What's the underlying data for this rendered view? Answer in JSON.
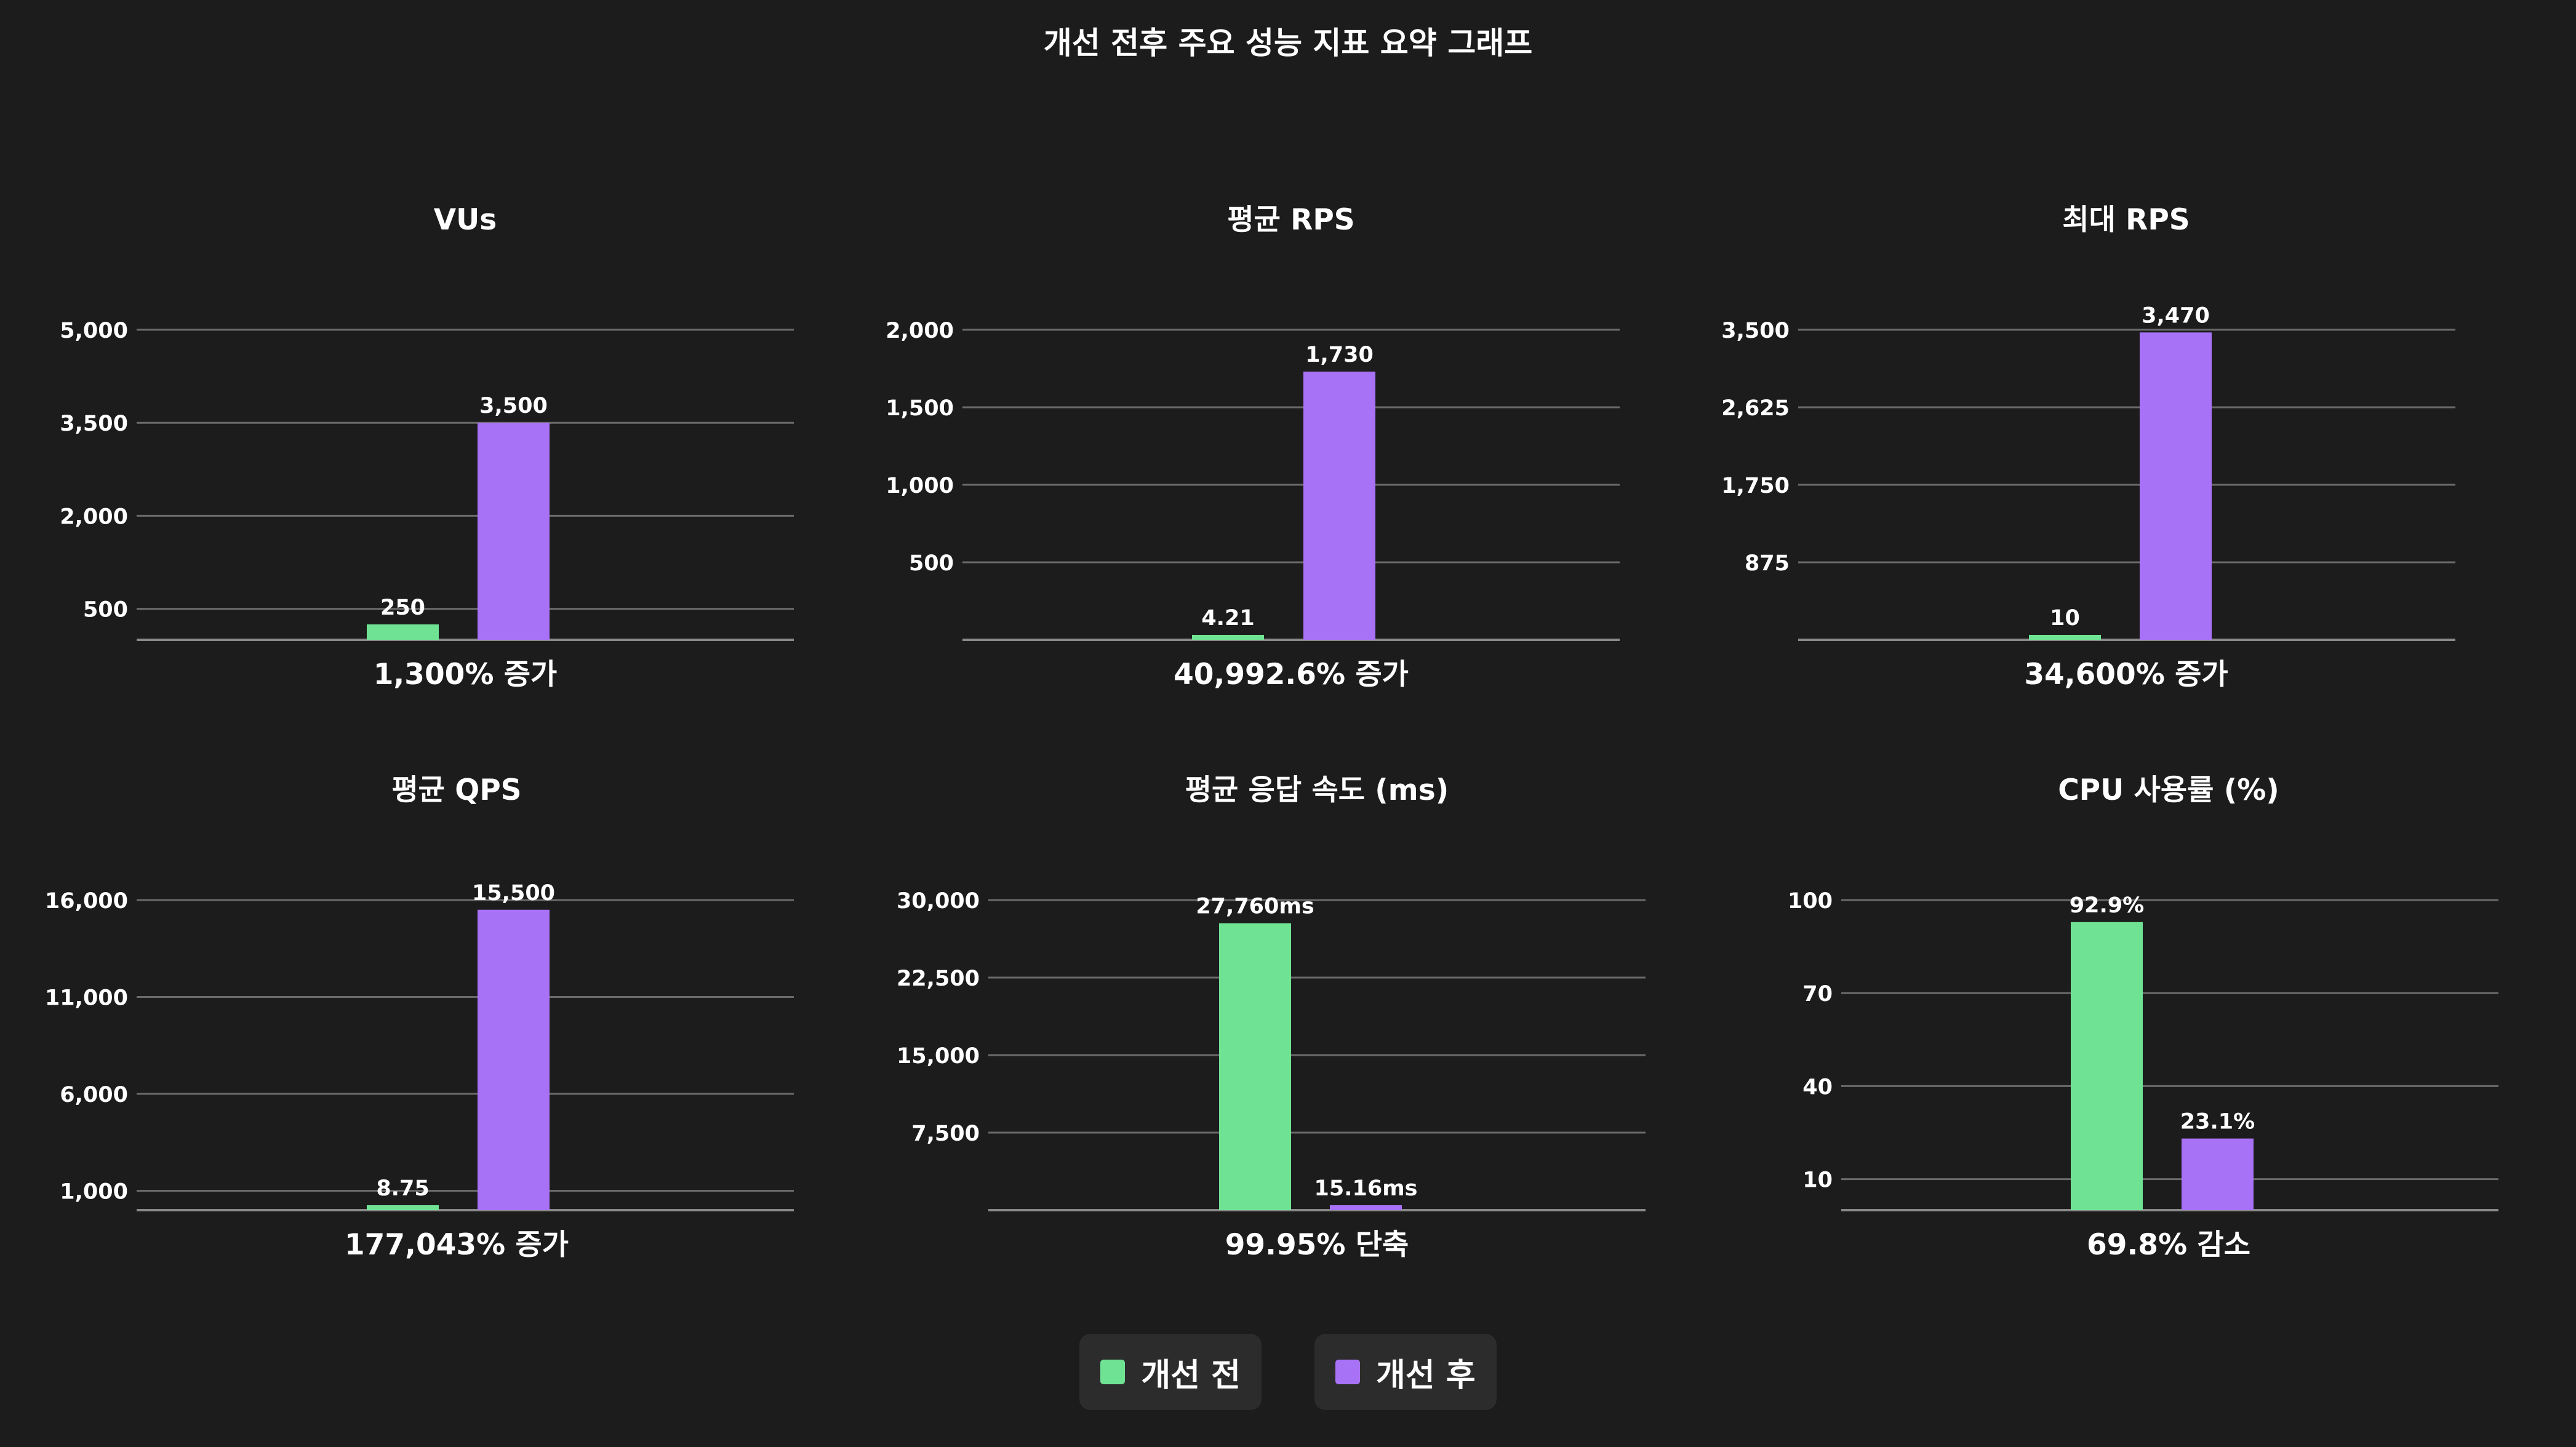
{
  "title": "개선 전후 주요 성능 지표 요약 그래프",
  "legend": [
    {
      "label": "개선 전",
      "color": "#6fe393"
    },
    {
      "label": "개선 후",
      "color": "#a872f7"
    }
  ],
  "chart_data": [
    {
      "type": "bar",
      "title": "VUs",
      "categories": [
        "개선 전",
        "개선 후"
      ],
      "values": [
        250,
        3500
      ],
      "value_labels": [
        "250",
        "3,500"
      ],
      "yticks": [
        500,
        2000,
        3500,
        5000
      ],
      "ytick_labels": [
        "500",
        "2,000",
        "3,500",
        "5,000"
      ],
      "ylim": [
        0,
        5000
      ],
      "caption": "1,300% 증가"
    },
    {
      "type": "bar",
      "title": "평균 RPS",
      "categories": [
        "개선 전",
        "개선 후"
      ],
      "values": [
        4.21,
        1730
      ],
      "value_labels": [
        "4.21",
        "1,730"
      ],
      "yticks": [
        500,
        1000,
        1500,
        2000
      ],
      "ytick_labels": [
        "500",
        "1,000",
        "1,500",
        "2,000"
      ],
      "ylim": [
        0,
        2000
      ],
      "caption": "40,992.6% 증가"
    },
    {
      "type": "bar",
      "title": "최대 RPS",
      "categories": [
        "개선 전",
        "개선 후"
      ],
      "values": [
        10,
        3470
      ],
      "value_labels": [
        "10",
        "3,470"
      ],
      "yticks": [
        875,
        1750,
        2625,
        3500
      ],
      "ytick_labels": [
        "875",
        "1,750",
        "2,625",
        "3,500"
      ],
      "ylim": [
        0,
        3500
      ],
      "caption": "34,600% 증가"
    },
    {
      "type": "bar",
      "title": "평균 QPS",
      "categories": [
        "개선 전",
        "개선 후"
      ],
      "values": [
        8.75,
        15500
      ],
      "value_labels": [
        "8.75",
        "15,500"
      ],
      "yticks": [
        1000,
        6000,
        11000,
        16000
      ],
      "ytick_labels": [
        "1,000",
        "6,000",
        "11,000",
        "16,000"
      ],
      "ylim": [
        0,
        16000
      ],
      "caption": "177,043% 증가"
    },
    {
      "type": "bar",
      "title": "평균 응답 속도 (ms)",
      "categories": [
        "개선 전",
        "개선 후"
      ],
      "values": [
        27760,
        15.16
      ],
      "value_labels": [
        "27,760ms",
        "15.16ms"
      ],
      "yticks": [
        7500,
        15000,
        22500,
        30000
      ],
      "ytick_labels": [
        "7,500",
        "15,000",
        "22,500",
        "30,000"
      ],
      "ylim": [
        0,
        30000
      ],
      "caption": "99.95% 단축"
    },
    {
      "type": "bar",
      "title": "CPU 사용률 (%)",
      "categories": [
        "개선 전",
        "개선 후"
      ],
      "values": [
        92.9,
        23.1
      ],
      "value_labels": [
        "92.9%",
        "23.1%"
      ],
      "yticks": [
        10,
        40,
        70,
        100
      ],
      "ytick_labels": [
        "10",
        "40",
        "70",
        "100"
      ],
      "ylim": [
        0,
        100
      ],
      "caption": "69.8% 감소"
    }
  ]
}
